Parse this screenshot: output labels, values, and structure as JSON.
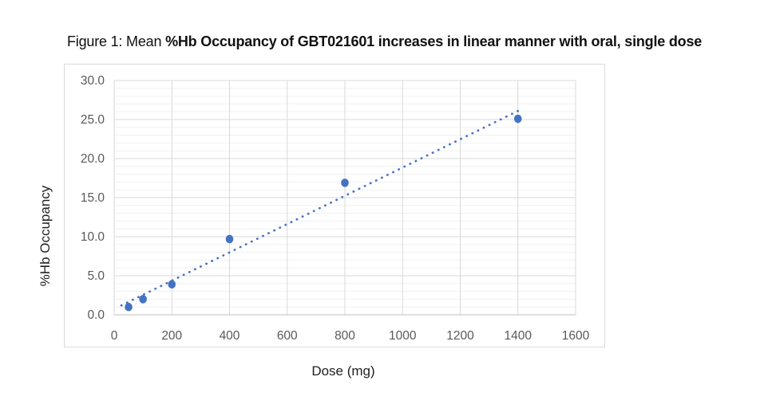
{
  "figure": {
    "title_prefix": "Figure 1: Mean ",
    "title_emphasis": "%Hb Occupancy of GBT021601 increases in linear manner with oral, single dose"
  },
  "chart_data": {
    "type": "scatter",
    "title": "Figure 1: Mean %Hb Occupancy of GBT021601 increases in linear manner with oral, single dose",
    "xlabel": "Dose (mg)",
    "ylabel": "%Hb Occupancy",
    "xlim": [
      0,
      1600
    ],
    "ylim": [
      0,
      30
    ],
    "x_tick_step": 200,
    "y_tick_step": 5,
    "y_minor_step": 1,
    "y_tick_decimals": 1,
    "grid": true,
    "legend_position": "none",
    "x": [
      50,
      100,
      200,
      400,
      800,
      1400
    ],
    "y": [
      1.0,
      2.0,
      3.9,
      9.7,
      16.9,
      25.1
    ],
    "trendline": {
      "style": "dotted",
      "x": [
        25,
        1400
      ],
      "y": [
        1.2,
        26.1
      ]
    },
    "colors": {
      "marker": "#4472C4",
      "trendline": "#4472C4",
      "grid_major": "#d9d9d9",
      "grid_minor": "#f0f0f0",
      "axis_line": "#bfbfbf",
      "tick_text": "#595959",
      "frame_border": "#d9d9d9",
      "title_text": "#111111"
    }
  }
}
